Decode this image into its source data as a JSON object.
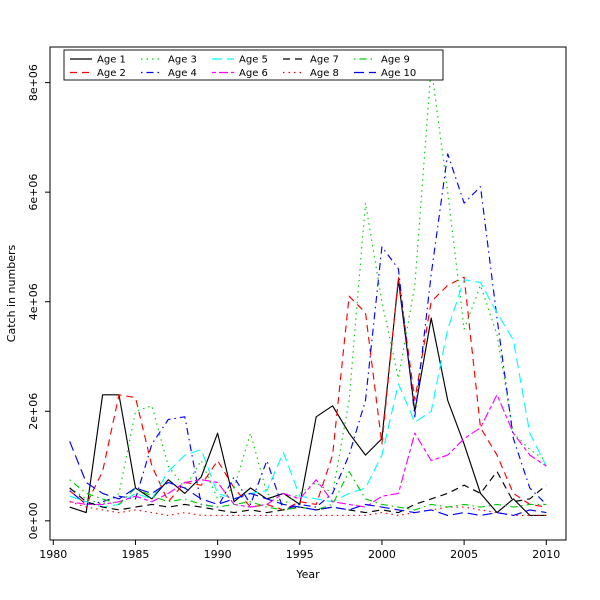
{
  "figure": {
    "title": "",
    "xlabel": "Year",
    "ylabel": "Catch in numbers"
  },
  "chart_data": {
    "type": "line",
    "title": "",
    "xlabel": "Year",
    "ylabel": "Catch in numbers",
    "grid": false,
    "legend_position": "top",
    "xlim": [
      1979.8,
      2011.2
    ],
    "ylim": [
      -350000,
      8650000
    ],
    "x_ticks": [
      1980,
      1985,
      1990,
      1995,
      2000,
      2005,
      2010
    ],
    "y_ticks": {
      "values": [
        0,
        2000000,
        4000000,
        6000000,
        8000000
      ],
      "labels": [
        "0e+00",
        "2e+06",
        "4e+06",
        "6e+06",
        "8e+06"
      ]
    },
    "x": [
      1981,
      1982,
      1983,
      1984,
      1985,
      1986,
      1987,
      1988,
      1989,
      1990,
      1991,
      1992,
      1993,
      1994,
      1995,
      1996,
      1997,
      1998,
      1999,
      2000,
      2001,
      2002,
      2003,
      2004,
      2005,
      2006,
      2007,
      2008,
      2009,
      2010
    ],
    "series": [
      {
        "name": "Age 1",
        "color": "#000000",
        "linetype": "solid",
        "values": [
          250000,
          150000,
          2300000,
          2300000,
          600000,
          400000,
          750000,
          500000,
          800000,
          1600000,
          350000,
          600000,
          400000,
          500000,
          300000,
          1900000,
          2100000,
          1600000,
          1200000,
          1500000,
          4400000,
          2000000,
          3700000,
          2200000,
          1400000,
          500000,
          150000,
          400000,
          100000,
          100000
        ]
      },
      {
        "name": "Age 2",
        "color": "#FF0000",
        "linetype": "dashed",
        "values": [
          550000,
          300000,
          900000,
          2300000,
          2250000,
          1000000,
          350000,
          700000,
          650000,
          1100000,
          600000,
          250000,
          300000,
          200000,
          350000,
          300000,
          1200000,
          4100000,
          3800000,
          1400000,
          4450000,
          2200000,
          4000000,
          4300000,
          4450000,
          1700000,
          1200000,
          500000,
          300000,
          250000
        ]
      },
      {
        "name": "Age 3",
        "color": "#00CD00",
        "linetype": "dotted",
        "values": [
          600000,
          400000,
          300000,
          500000,
          2000000,
          2100000,
          1000000,
          600000,
          1100000,
          400000,
          600000,
          1600000,
          500000,
          300000,
          500000,
          700000,
          500000,
          2200000,
          5800000,
          4000000,
          2600000,
          4300000,
          8300000,
          6000000,
          3500000,
          4300000,
          3400000,
          1600000,
          1300000,
          1100000
        ]
      },
      {
        "name": "Age 4",
        "color": "#0000FF",
        "linetype": "dotdash",
        "values": [
          550000,
          300000,
          350000,
          450000,
          400000,
          1400000,
          1850000,
          1900000,
          300000,
          250000,
          800000,
          300000,
          1100000,
          200000,
          300000,
          250000,
          500000,
          1200000,
          2200000,
          5000000,
          4600000,
          1900000,
          4500000,
          6700000,
          5800000,
          6100000,
          3700000,
          1500000,
          600000,
          300000
        ]
      },
      {
        "name": "Age 5",
        "color": "#00FFFF",
        "linetype": "longdash",
        "values": [
          450000,
          350000,
          250000,
          300000,
          500000,
          400000,
          900000,
          1200000,
          1300000,
          500000,
          400000,
          500000,
          550000,
          1250000,
          450000,
          400000,
          350000,
          500000,
          600000,
          1200000,
          2500000,
          1800000,
          2000000,
          3500000,
          4400000,
          4350000,
          3800000,
          3300000,
          1600000,
          1000000
        ]
      },
      {
        "name": "Age 6",
        "color": "#FF00FF",
        "linetype": "twodash",
        "values": [
          350000,
          300000,
          300000,
          350000,
          450000,
          350000,
          500000,
          700000,
          750000,
          700000,
          300000,
          250000,
          300000,
          500000,
          400000,
          750000,
          350000,
          300000,
          250000,
          450000,
          500000,
          1600000,
          1100000,
          1200000,
          1500000,
          1700000,
          2300000,
          1600000,
          1200000,
          1000000
        ]
      },
      {
        "name": "Age 7",
        "color": "#000000",
        "linetype": "dashed",
        "values": [
          600000,
          350000,
          250000,
          200000,
          250000,
          300000,
          250000,
          300000,
          250000,
          200000,
          150000,
          200000,
          150000,
          200000,
          250000,
          200000,
          250000,
          200000,
          150000,
          200000,
          150000,
          300000,
          400000,
          500000,
          650000,
          500000,
          900000,
          350000,
          400000,
          650000
        ]
      },
      {
        "name": "Age 8",
        "color": "#FF0000",
        "linetype": "dotted",
        "values": [
          350000,
          250000,
          200000,
          150000,
          200000,
          150000,
          100000,
          150000,
          100000,
          100000,
          100000,
          100000,
          100000,
          100000,
          100000,
          100000,
          100000,
          100000,
          100000,
          150000,
          100000,
          150000,
          200000,
          250000,
          250000,
          200000,
          150000,
          100000,
          100000,
          100000
        ]
      },
      {
        "name": "Age 9",
        "color": "#00CD00",
        "linetype": "dotdash",
        "values": [
          750000,
          500000,
          400000,
          300000,
          600000,
          450000,
          350000,
          400000,
          300000,
          250000,
          300000,
          350000,
          250000,
          200000,
          250000,
          200000,
          300000,
          900000,
          400000,
          300000,
          250000,
          200000,
          300000,
          250000,
          300000,
          250000,
          300000,
          250000,
          300000,
          300000
        ]
      },
      {
        "name": "Age 10",
        "color": "#0000FF",
        "linetype": "longdash",
        "values": [
          1450000,
          700000,
          500000,
          400000,
          600000,
          500000,
          700000,
          600000,
          400000,
          300000,
          400000,
          500000,
          400000,
          300000,
          250000,
          200000,
          250000,
          200000,
          300000,
          250000,
          200000,
          150000,
          200000,
          100000,
          150000,
          100000,
          150000,
          100000,
          200000,
          150000
        ]
      }
    ]
  }
}
